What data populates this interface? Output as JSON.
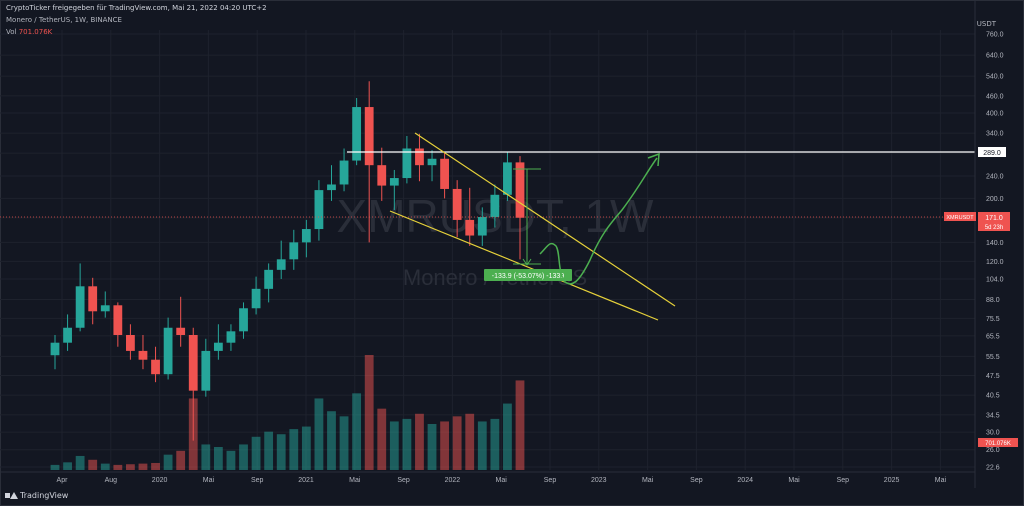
{
  "header": {
    "title": "CryptoTicker freigegeben für TradingView.com, Mai 21, 2022 04:20 UTC+2",
    "symbol_line": "Monero / TetherUS, 1W, BINANCE",
    "vol_label": "Vol",
    "vol_value": "701.076K"
  },
  "watermark": {
    "ticker": "XMRUSDT, 1W",
    "name": "Monero / TetherUS"
  },
  "price_axis": {
    "currency": "USDT",
    "ticks": [
      "760.0",
      "640.0",
      "540.0",
      "460.0",
      "400.0",
      "340.0",
      "289.0",
      "240.0",
      "200.0",
      "171.0",
      "140.0",
      "120.0",
      "104.0",
      "88.0",
      "75.5",
      "65.5",
      "55.5",
      "47.5",
      "40.5",
      "34.5",
      "30.0",
      "26.0",
      "22.6"
    ]
  },
  "time_axis": {
    "ticks": [
      "Apr",
      "Aug",
      "2020",
      "Mai",
      "Sep",
      "2021",
      "Mai",
      "Sep",
      "2022",
      "Mai",
      "Sep",
      "2023",
      "Mai",
      "Sep",
      "2024",
      "Mai",
      "Sep",
      "2025",
      "Mai"
    ]
  },
  "badges": {
    "hline_price": "289.0",
    "symbol": "XMRUSDT",
    "last_price": "171.0",
    "countdown": "5d 23h",
    "volume": "701.076K"
  },
  "measure_label": "-133.9 (-53.07%) -1339",
  "footer": {
    "brand": "TradingView"
  },
  "colors": {
    "bg": "#131722",
    "up": "#26a69a",
    "down": "#ef5350",
    "hline": "#ffffff",
    "trend": "#e6d13a",
    "arrow": "#4caf50",
    "price_line": "#ef5350"
  },
  "chart_data": {
    "type": "candlestick",
    "title": "Monero / TetherUS, 1W, BINANCE",
    "y_scale": "log",
    "ylim": [
      22.6,
      760
    ],
    "candles": [
      {
        "x": "2019-04",
        "o": 56,
        "h": 66,
        "l": 50,
        "c": 62
      },
      {
        "x": "2019-05",
        "o": 62,
        "h": 78,
        "l": 58,
        "c": 70
      },
      {
        "x": "2019-06",
        "o": 70,
        "h": 118,
        "l": 68,
        "c": 98
      },
      {
        "x": "2019-07",
        "o": 98,
        "h": 105,
        "l": 72,
        "c": 80
      },
      {
        "x": "2019-08",
        "o": 80,
        "h": 94,
        "l": 76,
        "c": 84
      },
      {
        "x": "2019-09",
        "o": 84,
        "h": 86,
        "l": 60,
        "c": 66
      },
      {
        "x": "2019-10",
        "o": 66,
        "h": 72,
        "l": 54,
        "c": 58
      },
      {
        "x": "2019-11",
        "o": 58,
        "h": 66,
        "l": 50,
        "c": 54
      },
      {
        "x": "2019-12",
        "o": 54,
        "h": 60,
        "l": 45,
        "c": 48
      },
      {
        "x": "2020-01",
        "o": 48,
        "h": 76,
        "l": 46,
        "c": 70
      },
      {
        "x": "2020-02",
        "o": 70,
        "h": 90,
        "l": 60,
        "c": 66
      },
      {
        "x": "2020-03",
        "o": 66,
        "h": 70,
        "l": 28,
        "c": 42
      },
      {
        "x": "2020-04",
        "o": 42,
        "h": 64,
        "l": 40,
        "c": 58
      },
      {
        "x": "2020-05",
        "o": 58,
        "h": 72,
        "l": 54,
        "c": 62
      },
      {
        "x": "2020-06",
        "o": 62,
        "h": 72,
        "l": 58,
        "c": 68
      },
      {
        "x": "2020-07",
        "o": 68,
        "h": 86,
        "l": 64,
        "c": 82
      },
      {
        "x": "2020-08",
        "o": 82,
        "h": 106,
        "l": 78,
        "c": 96
      },
      {
        "x": "2020-09",
        "o": 96,
        "h": 118,
        "l": 86,
        "c": 112
      },
      {
        "x": "2020-10",
        "o": 112,
        "h": 142,
        "l": 104,
        "c": 122
      },
      {
        "x": "2020-11",
        "o": 122,
        "h": 155,
        "l": 112,
        "c": 140
      },
      {
        "x": "2020-12",
        "o": 140,
        "h": 168,
        "l": 124,
        "c": 156
      },
      {
        "x": "2021-01",
        "o": 156,
        "h": 232,
        "l": 142,
        "c": 214
      },
      {
        "x": "2021-02",
        "o": 214,
        "h": 262,
        "l": 196,
        "c": 224
      },
      {
        "x": "2021-03",
        "o": 224,
        "h": 300,
        "l": 212,
        "c": 272
      },
      {
        "x": "2021-04",
        "o": 272,
        "h": 452,
        "l": 262,
        "c": 420
      },
      {
        "x": "2021-05",
        "o": 420,
        "h": 518,
        "l": 140,
        "c": 262
      },
      {
        "x": "2021-06",
        "o": 262,
        "h": 302,
        "l": 196,
        "c": 222
      },
      {
        "x": "2021-07",
        "o": 222,
        "h": 252,
        "l": 182,
        "c": 236
      },
      {
        "x": "2021-08",
        "o": 236,
        "h": 332,
        "l": 226,
        "c": 300
      },
      {
        "x": "2021-09",
        "o": 300,
        "h": 338,
        "l": 230,
        "c": 262
      },
      {
        "x": "2021-10",
        "o": 262,
        "h": 296,
        "l": 230,
        "c": 276
      },
      {
        "x": "2021-11",
        "o": 276,
        "h": 292,
        "l": 200,
        "c": 216
      },
      {
        "x": "2021-12",
        "o": 216,
        "h": 232,
        "l": 146,
        "c": 168
      },
      {
        "x": "2022-01",
        "o": 168,
        "h": 218,
        "l": 136,
        "c": 148
      },
      {
        "x": "2022-02",
        "o": 148,
        "h": 186,
        "l": 136,
        "c": 172
      },
      {
        "x": "2022-03",
        "o": 172,
        "h": 224,
        "l": 158,
        "c": 206
      },
      {
        "x": "2022-04",
        "o": 206,
        "h": 292,
        "l": 196,
        "c": 268
      },
      {
        "x": "2022-05",
        "o": 268,
        "h": 282,
        "l": 122,
        "c": 171
      }
    ],
    "volume": [
      {
        "x": "2019-04",
        "v": 40
      },
      {
        "x": "2019-05",
        "v": 60
      },
      {
        "x": "2019-06",
        "v": 110
      },
      {
        "x": "2019-07",
        "v": 80
      },
      {
        "x": "2019-08",
        "v": 50
      },
      {
        "x": "2019-09",
        "v": 40
      },
      {
        "x": "2019-10",
        "v": 45
      },
      {
        "x": "2019-11",
        "v": 50
      },
      {
        "x": "2019-12",
        "v": 55
      },
      {
        "x": "2020-01",
        "v": 120
      },
      {
        "x": "2020-02",
        "v": 150
      },
      {
        "x": "2020-03",
        "v": 560
      },
      {
        "x": "2020-04",
        "v": 200
      },
      {
        "x": "2020-05",
        "v": 180
      },
      {
        "x": "2020-06",
        "v": 150
      },
      {
        "x": "2020-07",
        "v": 200
      },
      {
        "x": "2020-08",
        "v": 260
      },
      {
        "x": "2020-09",
        "v": 300
      },
      {
        "x": "2020-10",
        "v": 280
      },
      {
        "x": "2020-11",
        "v": 320
      },
      {
        "x": "2020-12",
        "v": 340
      },
      {
        "x": "2021-01",
        "v": 560
      },
      {
        "x": "2021-02",
        "v": 460
      },
      {
        "x": "2021-03",
        "v": 420
      },
      {
        "x": "2021-04",
        "v": 600
      },
      {
        "x": "2021-05",
        "v": 900
      },
      {
        "x": "2021-06",
        "v": 480
      },
      {
        "x": "2021-07",
        "v": 380
      },
      {
        "x": "2021-08",
        "v": 400
      },
      {
        "x": "2021-09",
        "v": 440
      },
      {
        "x": "2021-10",
        "v": 360
      },
      {
        "x": "2021-11",
        "v": 380
      },
      {
        "x": "2021-12",
        "v": 420
      },
      {
        "x": "2022-01",
        "v": 440
      },
      {
        "x": "2022-02",
        "v": 380
      },
      {
        "x": "2022-03",
        "v": 400
      },
      {
        "x": "2022-04",
        "v": 520
      },
      {
        "x": "2022-05",
        "v": 701
      }
    ]
  }
}
